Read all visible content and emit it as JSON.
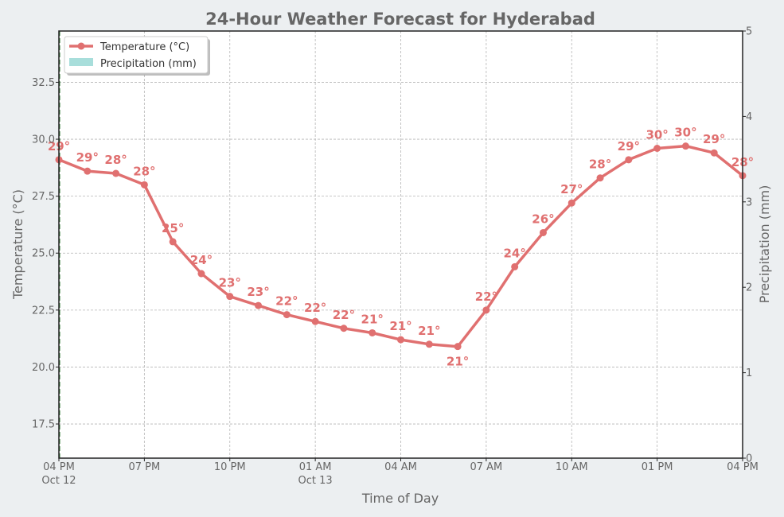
{
  "chart_data": {
    "type": "line",
    "title": "24-Hour Weather Forecast for Hyderabad",
    "xlabel": "Time of Day",
    "ylabel": "Temperature (°C)",
    "y2label": "Precipitation (mm)",
    "xlim": [
      0,
      24
    ],
    "ylim": [
      16,
      34.75
    ],
    "y2lim": [
      0,
      5
    ],
    "grid": true,
    "legend_position": "top-left",
    "x_ticks": [
      {
        "x": 0,
        "label": "04 PM",
        "sublabel": "Oct 12"
      },
      {
        "x": 3,
        "label": "07 PM",
        "sublabel": ""
      },
      {
        "x": 6,
        "label": "10 PM",
        "sublabel": ""
      },
      {
        "x": 9,
        "label": "01 AM",
        "sublabel": "Oct 13"
      },
      {
        "x": 12,
        "label": "04 AM",
        "sublabel": ""
      },
      {
        "x": 15,
        "label": "07 AM",
        "sublabel": ""
      },
      {
        "x": 18,
        "label": "10 AM",
        "sublabel": ""
      },
      {
        "x": 21,
        "label": "01 PM",
        "sublabel": ""
      },
      {
        "x": 24,
        "label": "04 PM",
        "sublabel": ""
      }
    ],
    "y_ticks": [
      {
        "v": 17.5,
        "label": "17.5"
      },
      {
        "v": 20,
        "label": "20.0"
      },
      {
        "v": 22.5,
        "label": "22.5"
      },
      {
        "v": 25,
        "label": "25.0"
      },
      {
        "v": 27.5,
        "label": "27.5"
      },
      {
        "v": 30,
        "label": "30.0"
      },
      {
        "v": 32.5,
        "label": "32.5"
      }
    ],
    "y2_ticks": [
      {
        "v": 0,
        "label": "0"
      },
      {
        "v": 1,
        "label": "1"
      },
      {
        "v": 2,
        "label": "2"
      },
      {
        "v": 3,
        "label": "3"
      },
      {
        "v": 4,
        "label": "4"
      },
      {
        "v": 5,
        "label": "5"
      }
    ],
    "series": [
      {
        "name": "Temperature (°C)",
        "color": "#e07070",
        "x": [
          0,
          1,
          2,
          3,
          4,
          5,
          6,
          7,
          8,
          9,
          10,
          11,
          12,
          13,
          14,
          15,
          16,
          17,
          18,
          19,
          20,
          21,
          22,
          23,
          24
        ],
        "values": [
          29.1,
          28.6,
          28.5,
          28.0,
          25.5,
          24.1,
          23.1,
          22.7,
          22.3,
          22.0,
          21.7,
          21.5,
          21.2,
          21.0,
          20.9,
          22.5,
          24.4,
          25.9,
          27.2,
          28.3,
          29.1,
          29.6,
          29.7,
          29.4,
          28.4
        ],
        "labels": [
          "29°",
          "29°",
          "28°",
          "28°",
          "25°",
          "24°",
          "23°",
          "23°",
          "22°",
          "22°",
          "22°",
          "21°",
          "21°",
          "21°",
          "21°",
          "22°",
          "24°",
          "26°",
          "27°",
          "28°",
          "29°",
          "30°",
          "30°",
          "29°",
          "28°"
        ]
      },
      {
        "name": "Precipitation (mm)",
        "color": "#a8dedb",
        "values": []
      }
    ]
  }
}
